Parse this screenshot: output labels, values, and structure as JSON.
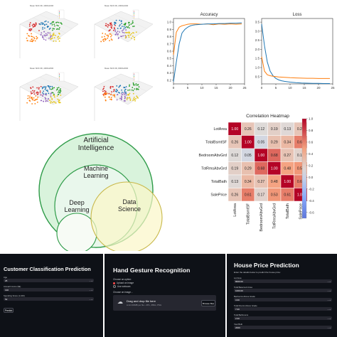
{
  "scatter3d": {
    "titles": [
      "Mean Shift 3D, 4000x1000",
      "Mean Shift 3D, 2000x1000",
      "Mean Shift 3D, 4000x2000",
      "Mean Shift 3D, 8000x2000"
    ],
    "cluster_colors": [
      "#d62728",
      "#1f77b4",
      "#2ca02c",
      "#ff7f0e",
      "#9467bd",
      "#e6c619"
    ]
  },
  "chart_data": [
    {
      "type": "line",
      "title": "Accuracy",
      "x_ticks": [
        "0",
        "5",
        "10",
        "15",
        "20",
        "25"
      ],
      "y_ticks": [
        "0.2",
        "0.3",
        "0.4",
        "0.5",
        "0.6",
        "0.7",
        "0.8",
        "0.9",
        "1.0"
      ],
      "xlim": [
        0,
        25
      ],
      "ylim": [
        0.15,
        1.05
      ],
      "series": [
        {
          "color": "#ff7f0e",
          "x": [
            0,
            1,
            2,
            3,
            4,
            5,
            6,
            7,
            8,
            10,
            12,
            14,
            16,
            18,
            20,
            22,
            24
          ],
          "values": [
            0.55,
            0.86,
            0.93,
            0.95,
            0.96,
            0.97,
            0.975,
            0.975,
            0.975,
            0.97,
            0.975,
            0.965,
            0.975,
            0.97,
            0.975,
            0.97,
            0.975
          ]
        },
        {
          "color": "#1f77b4",
          "x": [
            0,
            1,
            2,
            3,
            4,
            5,
            6,
            7,
            8,
            10,
            12,
            14,
            16,
            18,
            20,
            22,
            24
          ],
          "values": [
            0.18,
            0.45,
            0.7,
            0.85,
            0.9,
            0.93,
            0.95,
            0.96,
            0.965,
            0.97,
            0.975,
            0.975,
            0.98,
            0.98,
            0.985,
            0.985,
            0.99
          ]
        }
      ]
    },
    {
      "type": "line",
      "title": "Loss",
      "x_ticks": [
        "0",
        "5",
        "10",
        "15",
        "20",
        "25"
      ],
      "y_ticks": [
        "0.5",
        "1.0",
        "1.5",
        "2.0",
        "2.5",
        "3.0",
        "3.5"
      ],
      "xlim": [
        0,
        25
      ],
      "ylim": [
        0.1,
        3.7
      ],
      "series": [
        {
          "color": "#1f77b4",
          "x": [
            0,
            1,
            2,
            3,
            4,
            5,
            6,
            7,
            8,
            10,
            12,
            14,
            16,
            18,
            20,
            22,
            24
          ],
          "values": [
            3.4,
            2.2,
            1.3,
            0.8,
            0.55,
            0.4,
            0.32,
            0.27,
            0.24,
            0.2,
            0.17,
            0.15,
            0.14,
            0.13,
            0.13,
            0.12,
            0.12
          ]
        },
        {
          "color": "#ff7f0e",
          "x": [
            0,
            1,
            2,
            3,
            4,
            5,
            6,
            7,
            8,
            10,
            12,
            14,
            16,
            18,
            20,
            22,
            24
          ],
          "values": [
            1.6,
            0.8,
            0.6,
            0.55,
            0.52,
            0.5,
            0.48,
            0.47,
            0.46,
            0.44,
            0.43,
            0.42,
            0.41,
            0.41,
            0.4,
            0.4,
            0.4
          ]
        }
      ]
    },
    {
      "type": "heatmap",
      "title": "Correlation Heatmap",
      "labels": [
        "LotArea",
        "TotalBsmtSF",
        "BedroomAbvGrd",
        "TotRmsAbvGrd",
        "TotalBath",
        "SalePrice"
      ],
      "values": [
        [
          "1.00",
          "0.26",
          "0.12",
          "0.19",
          "0.13",
          "0.26"
        ],
        [
          "0.26",
          "1.00",
          "0.05",
          "0.29",
          "0.34",
          "0.61"
        ],
        [
          "0.12",
          "0.05",
          "1.00",
          "0.68",
          "0.27",
          "0.17"
        ],
        [
          "0.19",
          "0.29",
          "0.68",
          "1.00",
          "0.48",
          "0.53"
        ],
        [
          "0.13",
          "0.34",
          "0.27",
          "0.48",
          "1.00",
          "0.61"
        ],
        [
          "0.26",
          "0.61",
          "0.17",
          "0.53",
          "0.61",
          "1.00"
        ]
      ],
      "colorbar_ticks": [
        "1.0",
        "0.8",
        "0.6",
        "0.4",
        "0.2",
        "0.0",
        "-0.2",
        "-0.4",
        "-0.6"
      ],
      "vmin": -0.7,
      "vmax": 1.0
    }
  ],
  "venn": {
    "ai": "Artificial Intelligence",
    "ml": "Machine Learning",
    "dl": "Deep Learning",
    "ds": "Data Science"
  },
  "apps": {
    "customer": {
      "title": "Customer Classification Prediction",
      "fields": [
        {
          "label": "Age",
          "value": "25"
        },
        {
          "label": "Annual Income ($k)",
          "value": "130"
        },
        {
          "label": "Spending Score (1-100)",
          "value": "52"
        }
      ],
      "button": "Predict"
    },
    "gesture": {
      "title": "Hand Gesture Recognition",
      "choose_label": "Choose an option:",
      "options": [
        "Upload an image",
        "Use webcam"
      ],
      "choose_image": "Choose an image...",
      "drop_text": "Drag and drop file here",
      "drop_hint": "Limit 200MB per file • JPG, JPEG, PNG",
      "browse": "Browse files"
    },
    "house": {
      "title": "House Price Prediction",
      "subtitle": "Enter the details below to predict the house price:",
      "fields": [
        {
          "label": "Lot Area",
          "value": "8000.00"
        },
        {
          "label": "Total Basement Area",
          "value": "1000.00"
        },
        {
          "label": "Bedrooms Above Grade",
          "value": "3.00"
        },
        {
          "label": "Total Rooms Above Grade",
          "value": "7.00"
        },
        {
          "label": "Total Bathrooms",
          "value": "2.00"
        },
        {
          "label": "Year Built",
          "value": "2000"
        }
      ]
    }
  }
}
